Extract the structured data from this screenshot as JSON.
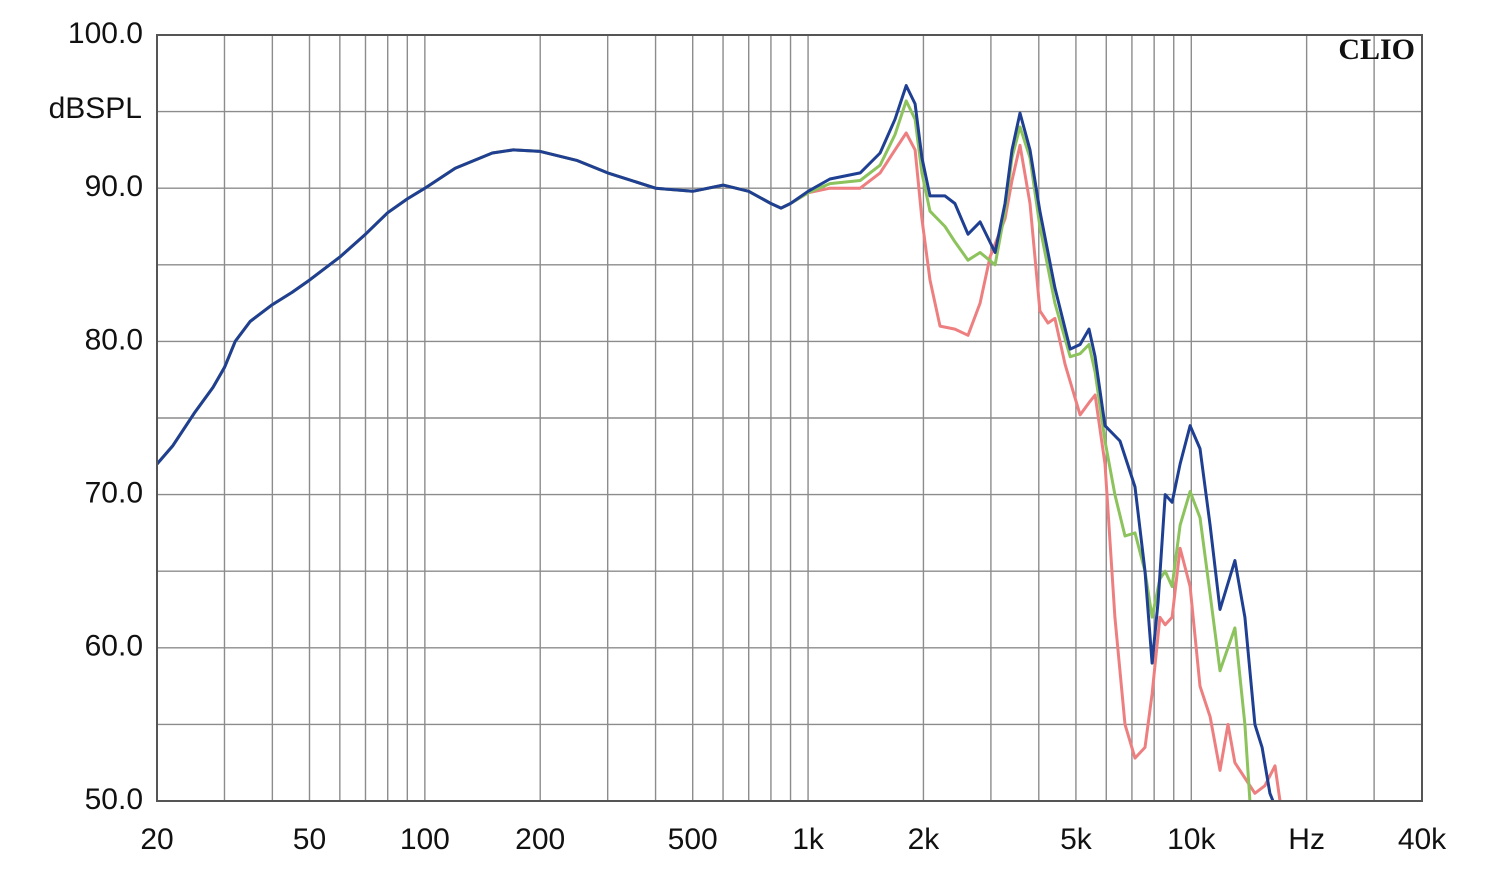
{
  "chart_data": {
    "type": "line",
    "brand": "CLIO",
    "y_label": "dBSPL",
    "log_x": true,
    "grid": true,
    "xlim": [
      20,
      40000
    ],
    "ylim": [
      50,
      100
    ],
    "xticks": [
      20,
      50,
      100,
      200,
      500,
      {
        "value": 1000,
        "label": "1k"
      },
      {
        "value": 2000,
        "label": "2k"
      },
      {
        "value": 5000,
        "label": "5k"
      },
      {
        "value": 10000,
        "label": "10k"
      },
      {
        "value": 20000,
        "label": "Hz"
      },
      {
        "value": 40000,
        "label": "40k"
      }
    ],
    "xminor": [
      30,
      40,
      60,
      70,
      80,
      90,
      300,
      400,
      600,
      700,
      800,
      900,
      3000,
      4000,
      6000,
      7000,
      8000,
      9000,
      30000
    ],
    "yticks": [
      {
        "value": 50,
        "label": "50.0"
      },
      {
        "value": 60,
        "label": "60.0"
      },
      {
        "value": 70,
        "label": "70.0"
      },
      {
        "value": 80,
        "label": "80.0"
      },
      {
        "value": 90,
        "label": "90.0"
      },
      {
        "value": 100,
        "label": "100.0"
      }
    ],
    "yminor": [
      55,
      65,
      75,
      85,
      95
    ],
    "series": [
      {
        "color": "#ee7f80",
        "x": [
          20,
          22,
          25,
          28,
          30,
          32,
          35,
          40,
          45,
          50,
          60,
          70,
          80,
          90,
          100,
          120,
          150,
          170,
          200,
          250,
          300,
          400,
          500,
          600,
          700,
          800,
          850,
          900,
          1000,
          1140,
          1368,
          1542,
          1686,
          1803,
          1902,
          1982,
          2080,
          2210,
          2416,
          2614,
          2812,
          2984,
          3266,
          3406,
          3572,
          3794,
          4028,
          4228,
          4406,
          4686,
          5128,
          5410,
          5610,
          5956,
          6320,
          6714,
          7130,
          7570,
          7900,
          8280,
          8550,
          8910,
          9350,
          9930,
          10540,
          11200,
          11880,
          12470,
          13000,
          13800,
          14660,
          15560,
          16540,
          17040
        ],
        "values": [
          72,
          73.2,
          75.3,
          77,
          78.3,
          80,
          81.3,
          82.4,
          83.2,
          84,
          85.5,
          87,
          88.4,
          89.3,
          90,
          91.3,
          92.3,
          92.5,
          92.4,
          91.8,
          91,
          90,
          89.8,
          90.2,
          89.8,
          89,
          88.7,
          89,
          89.7,
          90,
          90,
          91,
          92.5,
          93.6,
          92.5,
          88,
          84,
          81,
          80.8,
          80.4,
          82.5,
          85.5,
          88,
          90.5,
          92.8,
          89,
          82,
          81.2,
          81.5,
          78.5,
          75.2,
          76,
          76.5,
          72,
          62,
          55,
          52.8,
          53.5,
          57,
          62,
          61.5,
          62,
          66.5,
          64,
          57.5,
          55.5,
          52,
          55,
          52.5,
          51.5,
          50.5,
          51,
          52.3,
          50
        ]
      },
      {
        "color": "#8cc35c",
        "x": [
          20,
          22,
          25,
          28,
          30,
          32,
          35,
          40,
          45,
          50,
          60,
          70,
          80,
          90,
          100,
          120,
          150,
          170,
          200,
          250,
          300,
          400,
          500,
          600,
          700,
          800,
          850,
          900,
          1000,
          1140,
          1368,
          1542,
          1686,
          1803,
          1902,
          1982,
          2080,
          2277,
          2416,
          2614,
          2812,
          3076,
          3266,
          3406,
          3572,
          3794,
          4028,
          4406,
          4830,
          5128,
          5410,
          5610,
          5956,
          6320,
          6714,
          7130,
          7570,
          7900,
          8280,
          8550,
          8910,
          9350,
          9930,
          10540,
          11200,
          11880,
          13000,
          13800,
          14220
        ],
        "values": [
          72,
          73.2,
          75.3,
          77,
          78.3,
          80,
          81.3,
          82.4,
          83.2,
          84,
          85.5,
          87,
          88.4,
          89.3,
          90,
          91.3,
          92.3,
          92.5,
          92.4,
          91.8,
          91,
          90,
          89.8,
          90.2,
          89.8,
          89,
          88.7,
          89,
          89.7,
          90.3,
          90.5,
          91.5,
          93.5,
          95.7,
          94.5,
          91,
          88.5,
          87.5,
          86.5,
          85.3,
          85.8,
          85,
          88.5,
          92,
          94,
          92,
          87.5,
          82.5,
          79,
          79.2,
          79.8,
          78,
          73.5,
          70,
          67.3,
          67.5,
          65,
          62,
          64.5,
          65,
          64,
          68,
          70.2,
          68.5,
          63.5,
          58.5,
          61.3,
          55,
          50
        ]
      },
      {
        "color": "#1e3f92",
        "x": [
          20,
          22,
          25,
          28,
          30,
          32,
          35,
          40,
          45,
          50,
          60,
          70,
          80,
          90,
          100,
          120,
          150,
          170,
          200,
          250,
          300,
          400,
          500,
          600,
          700,
          800,
          850,
          900,
          1000,
          1140,
          1368,
          1542,
          1686,
          1803,
          1902,
          1982,
          2080,
          2277,
          2416,
          2614,
          2812,
          3076,
          3266,
          3406,
          3572,
          3794,
          4028,
          4406,
          4830,
          5128,
          5410,
          5610,
          5956,
          6517,
          7130,
          7570,
          7900,
          8190,
          8550,
          8910,
          9350,
          9930,
          10540,
          11200,
          11880,
          13000,
          13800,
          14660,
          15300,
          16040,
          16340
        ],
        "values": [
          72,
          73.2,
          75.3,
          77,
          78.3,
          80,
          81.3,
          82.4,
          83.2,
          84,
          85.5,
          87,
          88.4,
          89.3,
          90,
          91.3,
          92.3,
          92.5,
          92.4,
          91.8,
          91,
          90,
          89.8,
          90.2,
          89.8,
          89,
          88.7,
          89,
          89.8,
          90.6,
          91,
          92.3,
          94.5,
          96.7,
          95.5,
          92,
          89.5,
          89.5,
          89,
          87,
          87.8,
          85.8,
          89,
          92.5,
          94.9,
          92.5,
          88.5,
          83.5,
          79.5,
          79.8,
          80.8,
          79,
          74.5,
          73.5,
          70.5,
          65,
          59,
          63,
          70,
          69.5,
          72,
          74.5,
          73,
          68,
          62.5,
          65.7,
          62,
          55,
          53.5,
          50.5,
          50
        ]
      }
    ]
  }
}
